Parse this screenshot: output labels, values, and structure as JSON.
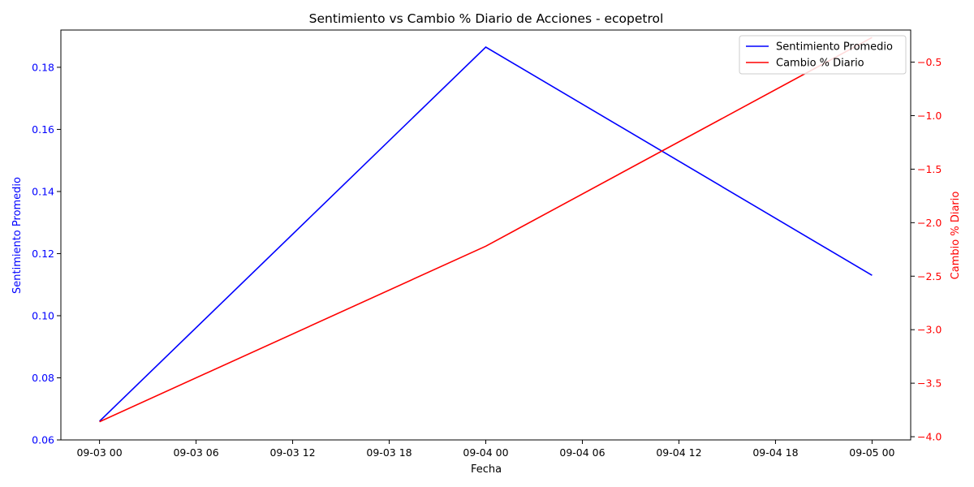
{
  "chart_data": {
    "type": "line",
    "title": "Sentimiento vs Cambio % Diario de Acciones - ecopetrol",
    "xlabel": "Fecha",
    "ylabel_left": "Sentimiento Promedio",
    "ylabel_right": "Cambio % Diario",
    "x": [
      "2023-09-03 00:00",
      "2023-09-04 00:00",
      "2023-09-05 00:00"
    ],
    "x_ticks": [
      "09-03 00",
      "09-03 06",
      "09-03 12",
      "09-03 18",
      "09-04 00",
      "09-04 06",
      "09-04 12",
      "09-04 18",
      "09-05 00"
    ],
    "series": [
      {
        "name": "Sentimiento Promedio",
        "axis": "left",
        "color": "#0000ff",
        "values": [
          0.066,
          0.1865,
          0.113
        ]
      },
      {
        "name": "Cambio % Diario",
        "axis": "right",
        "color": "#ff0000",
        "values": [
          -3.86,
          -2.22,
          -0.27
        ]
      }
    ],
    "ylim_left": [
      0.06,
      0.192
    ],
    "ylim_right": [
      -4.03,
      -0.2
    ],
    "yticks_left": [
      "0.06",
      "0.08",
      "0.10",
      "0.12",
      "0.14",
      "0.16",
      "0.18"
    ],
    "yticks_right": [
      "−4.0",
      "−3.5",
      "−3.0",
      "−2.5",
      "−2.0",
      "−1.5",
      "−1.0",
      "−0.5"
    ],
    "left_axis_color": "#0000ff",
    "right_axis_color": "#ff0000",
    "grid": false,
    "legend_position": "upper right"
  }
}
